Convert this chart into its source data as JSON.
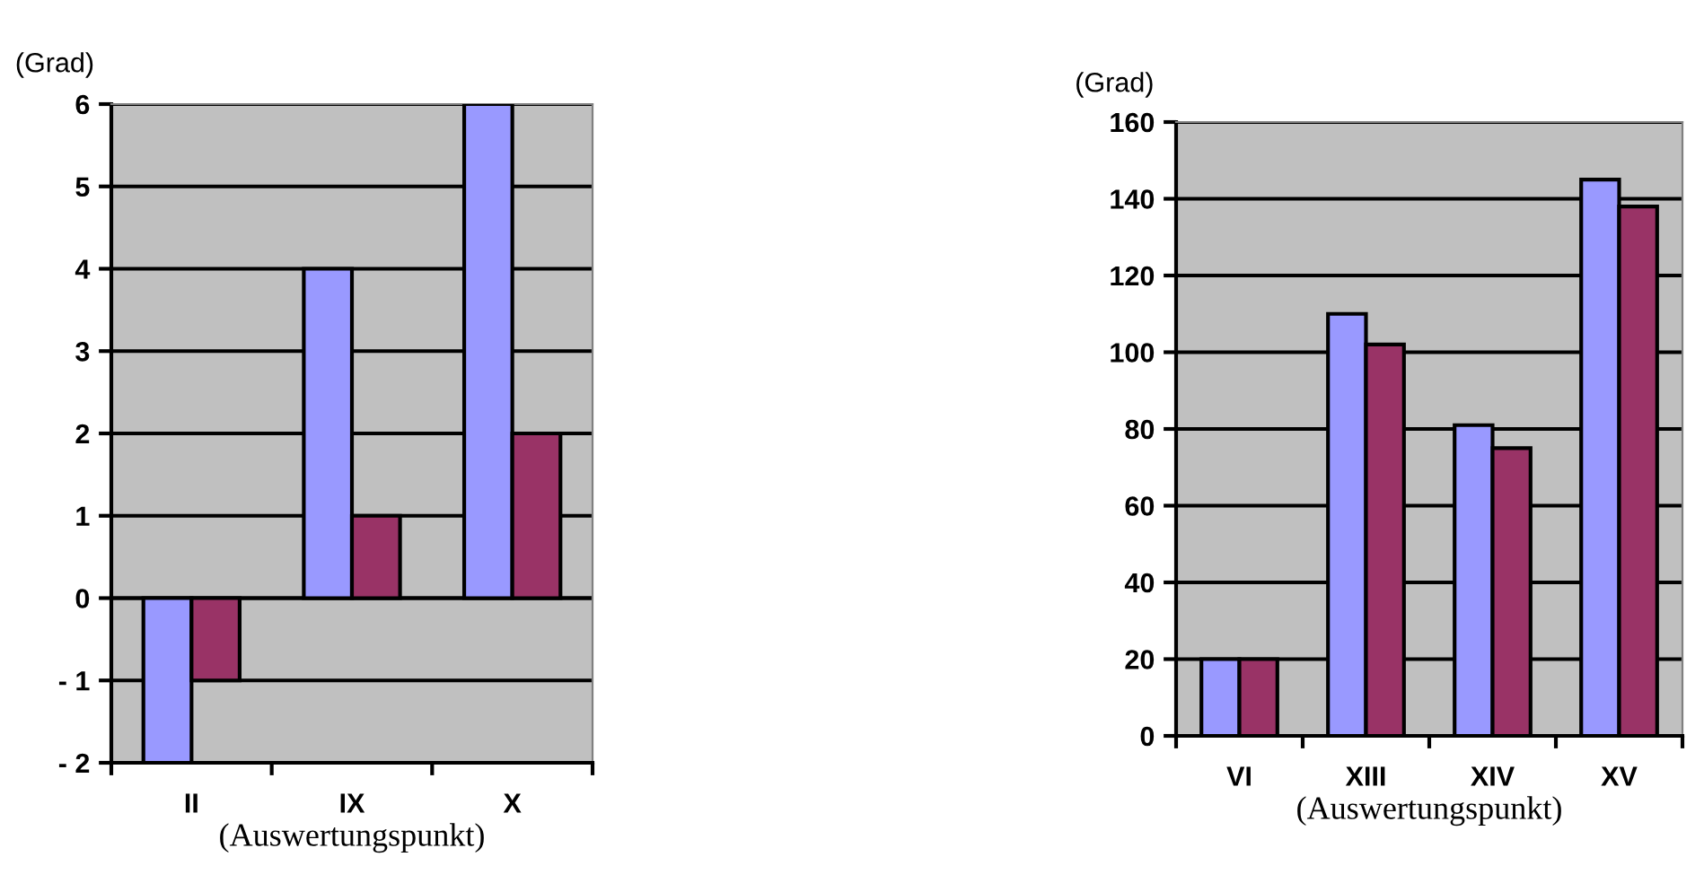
{
  "chart_data": [
    {
      "type": "bar",
      "categories": [
        "II",
        "IX",
        "X"
      ],
      "ylabel": "(Grad)",
      "xlabel": "(Auswertungspunkt)",
      "series": [
        {
          "color": "#9999ff",
          "values": [
            -2,
            4,
            6
          ]
        },
        {
          "color": "#993366",
          "values": [
            -1,
            1,
            2
          ]
        }
      ],
      "ylim": [
        -2,
        6
      ],
      "yticks": [
        {
          "value": -2,
          "label": "- 2"
        },
        {
          "value": -1,
          "label": "- 1"
        },
        0,
        1,
        2,
        3,
        4,
        5,
        6
      ],
      "grid": "y"
    },
    {
      "type": "bar",
      "categories": [
        "VI",
        "XIII",
        "XIV",
        "XV"
      ],
      "ylabel": "(Grad)",
      "xlabel": "(Auswertungspunkt)",
      "series": [
        {
          "color": "#9999ff",
          "values": [
            20,
            110,
            81,
            145
          ]
        },
        {
          "color": "#993366",
          "values": [
            20,
            102,
            75,
            138
          ]
        }
      ],
      "ylim": [
        0,
        160
      ],
      "yticks": [
        0,
        20,
        40,
        60,
        80,
        100,
        120,
        140,
        160
      ],
      "grid": "y"
    }
  ]
}
